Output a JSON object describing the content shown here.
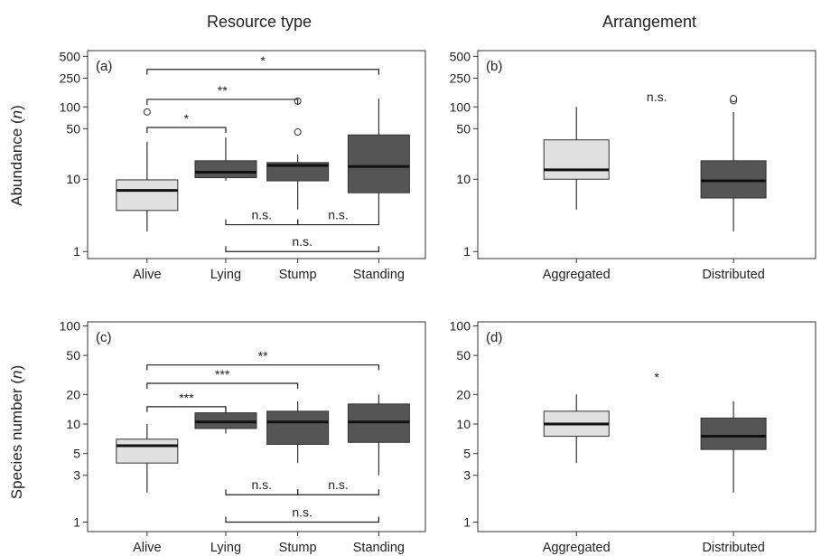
{
  "column_titles": [
    "Resource type",
    "Arrangement"
  ],
  "row_ylabels": [
    {
      "main": "Abundance (",
      "italic": "n",
      "close": ")"
    },
    {
      "main": "Species number (",
      "italic": "n",
      "close": ")"
    }
  ],
  "chart_data": [
    {
      "type": "boxplot",
      "panel_label": "(a)",
      "log_y": true,
      "ylim": [
        0.8,
        600
      ],
      "yticks": [
        1,
        10,
        50,
        100,
        250,
        500
      ],
      "categories": [
        "Alive",
        "Lying",
        "Stump",
        "Standing"
      ],
      "boxes": [
        {
          "q1": 3.7,
          "median": 7.0,
          "q3": 9.8,
          "whisker_low": 1.9,
          "whisker_high": 33,
          "outliers": [
            85
          ],
          "fill": "#e0e0e0"
        },
        {
          "q1": 10.5,
          "median": 12.5,
          "q3": 18,
          "whisker_low": 9.5,
          "whisker_high": 38,
          "outliers": [],
          "fill": "#555555"
        },
        {
          "q1": 9.5,
          "median": 15.5,
          "q3": 17,
          "whisker_low": 3.8,
          "whisker_high": 22,
          "outliers": [
            45,
            120
          ],
          "fill": "#555555"
        },
        {
          "q1": 6.5,
          "median": 15,
          "q3": 41,
          "whisker_low": 2.8,
          "whisker_high": 130,
          "outliers": [],
          "fill": "#555555"
        }
      ],
      "comparisons": [
        {
          "from": 0,
          "to": 3,
          "label": "*",
          "y": 330,
          "side": "above"
        },
        {
          "from": 0,
          "to": 2,
          "label": "**",
          "y": 127,
          "side": "above"
        },
        {
          "from": 0,
          "to": 1,
          "label": "*",
          "y": 52,
          "side": "above"
        },
        {
          "from": 1,
          "to": 2,
          "label": "n.s.",
          "y": 2.35,
          "side": "below"
        },
        {
          "from": 2,
          "to": 3,
          "label": "n.s.",
          "y": 2.35,
          "side": "below"
        },
        {
          "from": 1,
          "to": 3,
          "label": "n.s.",
          "y": 1.0,
          "side": "below"
        }
      ],
      "annotation": ""
    },
    {
      "type": "boxplot",
      "panel_label": "(b)",
      "log_y": true,
      "ylim": [
        0.8,
        600
      ],
      "yticks": [
        1,
        10,
        50,
        100,
        250,
        500
      ],
      "categories": [
        "Aggregated",
        "Distributed"
      ],
      "boxes": [
        {
          "q1": 10,
          "median": 13.5,
          "q3": 35,
          "whisker_low": 3.8,
          "whisker_high": 100,
          "outliers": [],
          "fill": "#e0e0e0"
        },
        {
          "q1": 5.5,
          "median": 9.5,
          "q3": 18,
          "whisker_low": 1.9,
          "whisker_high": 85,
          "outliers": [
            122,
            130
          ],
          "fill": "#555555"
        }
      ],
      "comparisons": [],
      "annotation": "n.s."
    },
    {
      "type": "boxplot",
      "panel_label": "(c)",
      "log_y": true,
      "ylim": [
        0.8,
        110
      ],
      "yticks": [
        1,
        3,
        5,
        10,
        20,
        50,
        100
      ],
      "categories": [
        "Alive",
        "Lying",
        "Stump",
        "Standing"
      ],
      "boxes": [
        {
          "q1": 4.0,
          "median": 6.0,
          "q3": 7.0,
          "whisker_low": 2.0,
          "whisker_high": 10,
          "outliers": [],
          "fill": "#e0e0e0"
        },
        {
          "q1": 9.0,
          "median": 10.5,
          "q3": 13,
          "whisker_low": 8.0,
          "whisker_high": 15,
          "outliers": [],
          "fill": "#555555"
        },
        {
          "q1": 6.2,
          "median": 10.5,
          "q3": 13.5,
          "whisker_low": 4.0,
          "whisker_high": 17,
          "outliers": [],
          "fill": "#555555"
        },
        {
          "q1": 6.5,
          "median": 10.5,
          "q3": 16,
          "whisker_low": 3.0,
          "whisker_high": 20,
          "outliers": [],
          "fill": "#555555"
        }
      ],
      "comparisons": [
        {
          "from": 0,
          "to": 3,
          "label": "**",
          "y": 40,
          "side": "above"
        },
        {
          "from": 0,
          "to": 2,
          "label": "***",
          "y": 26,
          "side": "above"
        },
        {
          "from": 0,
          "to": 1,
          "label": "***",
          "y": 15,
          "side": "above"
        },
        {
          "from": 1,
          "to": 2,
          "label": "n.s.",
          "y": 1.9,
          "side": "below"
        },
        {
          "from": 2,
          "to": 3,
          "label": "n.s.",
          "y": 1.9,
          "side": "below"
        },
        {
          "from": 1,
          "to": 3,
          "label": "n.s.",
          "y": 1.0,
          "side": "below"
        }
      ],
      "annotation": ""
    },
    {
      "type": "boxplot",
      "panel_label": "(d)",
      "log_y": true,
      "ylim": [
        0.8,
        110
      ],
      "yticks": [
        1,
        3,
        5,
        10,
        20,
        50,
        100
      ],
      "categories": [
        "Aggregated",
        "Distributed"
      ],
      "boxes": [
        {
          "q1": 7.5,
          "median": 10,
          "q3": 13.5,
          "whisker_low": 4.0,
          "whisker_high": 20,
          "outliers": [],
          "fill": "#e0e0e0"
        },
        {
          "q1": 5.5,
          "median": 7.5,
          "q3": 11.5,
          "whisker_low": 2.0,
          "whisker_high": 17,
          "outliers": [],
          "fill": "#555555"
        }
      ],
      "comparisons": [],
      "annotation": "*"
    }
  ]
}
